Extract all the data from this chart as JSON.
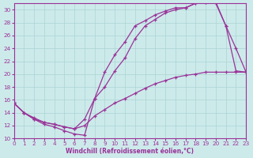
{
  "xlabel": "Windchill (Refroidissement éolien,°C)",
  "xlim": [
    0,
    23
  ],
  "ylim": [
    10,
    31
  ],
  "yticks": [
    10,
    12,
    14,
    16,
    18,
    20,
    22,
    24,
    26,
    28,
    30
  ],
  "xticks": [
    0,
    1,
    2,
    3,
    4,
    5,
    6,
    7,
    8,
    9,
    10,
    11,
    12,
    13,
    14,
    15,
    16,
    17,
    18,
    19,
    20,
    21,
    22,
    23
  ],
  "bg_color": "#cdeaea",
  "grid_color": "#aad4d4",
  "line_color": "#993399",
  "line1_x": [
    0,
    1,
    2,
    3,
    4,
    5,
    6,
    7,
    8,
    9,
    10,
    11,
    12,
    13,
    14,
    15,
    16,
    17,
    18,
    19,
    20,
    21,
    22,
    23
  ],
  "line1_y": [
    15.5,
    14.0,
    13.0,
    12.2,
    11.8,
    11.2,
    10.7,
    10.5,
    16.2,
    20.3,
    23.0,
    25.0,
    27.5,
    28.3,
    29.2,
    29.8,
    30.3,
    30.3,
    31.0,
    31.2,
    31.2,
    27.5,
    24.0,
    20.3
  ],
  "line2_x": [
    0,
    1,
    2,
    3,
    4,
    5,
    6,
    7,
    8,
    9,
    10,
    11,
    12,
    13,
    14,
    15,
    16,
    17,
    18,
    19,
    20,
    21,
    22,
    23
  ],
  "line2_y": [
    15.5,
    14.0,
    13.2,
    12.5,
    12.2,
    11.8,
    11.5,
    13.0,
    16.2,
    18.0,
    20.5,
    22.5,
    25.5,
    27.5,
    28.5,
    29.5,
    30.0,
    30.3,
    31.0,
    31.2,
    31.0,
    27.5,
    20.5,
    20.3
  ],
  "line3_x": [
    0,
    1,
    2,
    3,
    4,
    5,
    6,
    7,
    8,
    9,
    10,
    11,
    12,
    13,
    14,
    15,
    16,
    17,
    18,
    19,
    20,
    21,
    22,
    23
  ],
  "line3_y": [
    15.5,
    14.0,
    13.0,
    12.5,
    12.2,
    11.8,
    11.5,
    12.0,
    13.5,
    14.5,
    15.5,
    16.2,
    17.0,
    17.8,
    18.5,
    19.0,
    19.5,
    19.8,
    20.0,
    20.3,
    20.3,
    20.3,
    20.3,
    20.3
  ]
}
